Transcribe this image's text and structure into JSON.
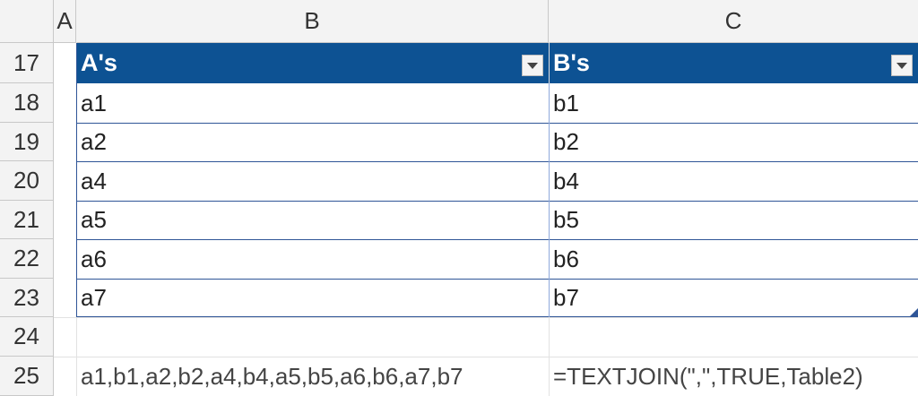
{
  "columns": {
    "a": "A",
    "b": "B",
    "c": "C"
  },
  "rows": [
    "17",
    "18",
    "19",
    "20",
    "21",
    "22",
    "23",
    "24",
    "25"
  ],
  "table": {
    "headers": [
      "A's",
      "B's"
    ],
    "rows": [
      [
        "a1",
        "b1"
      ],
      [
        "a2",
        "b2"
      ],
      [
        "a4",
        "b4"
      ],
      [
        "a5",
        "b5"
      ],
      [
        "a6",
        "b6"
      ],
      [
        "a7",
        "b7"
      ]
    ],
    "header_color": "#0d5293"
  },
  "row25": {
    "result": "a1,b1,a2,b2,a4,b4,a5,b5,a6,b6,a7,b7",
    "formula": "=TEXTJOIN(\",\",TRUE,Table2)"
  }
}
